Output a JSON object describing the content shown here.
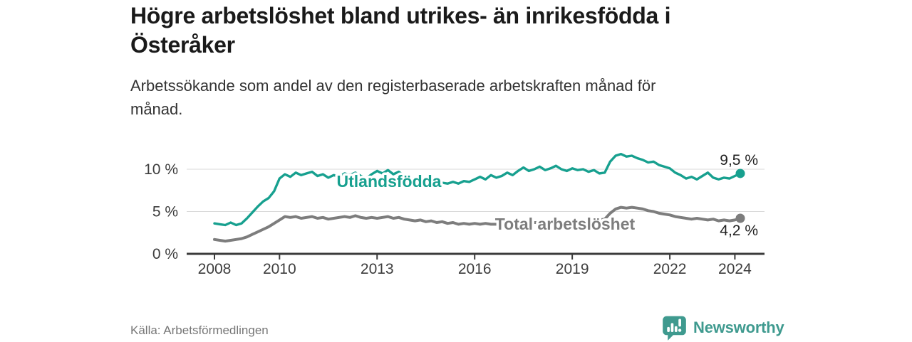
{
  "colors": {
    "accent_teal": "#17a08f",
    "series_gray": "#7d7d7d",
    "logo_teal": "#3f9a8f"
  },
  "header": {
    "title_lines": [
      "Högre arbetslöshet bland utrikes- än inrikesfödda i",
      "Österåker"
    ],
    "subtitle_lines": [
      "Arbetssökande som andel av den registerbaserade arbetskraften månad för",
      "månad."
    ]
  },
  "footer": {
    "source": "Källa: Arbetsförmedlingen",
    "brand": "Newsworthy"
  },
  "chart_data": {
    "type": "line",
    "title": "Högre arbetslöshet bland utrikes- än inrikesfödda i Österåker",
    "subtitle": "Arbetssökande som andel av den registerbaserade arbetskraften månad för månad.",
    "xlabel": "",
    "ylabel": "%",
    "x_start_year": 2008.0,
    "x_step_years": 0.1666667,
    "xlim": [
      2007.8,
      2024.9
    ],
    "ylim": [
      0,
      12.5
    ],
    "grid": "horizontal",
    "legend_position": "inline-labels",
    "x_ticks": [
      {
        "year": 2008,
        "label": "2008"
      },
      {
        "year": 2010,
        "label": "2010"
      },
      {
        "year": 2013,
        "label": "2013"
      },
      {
        "year": 2016,
        "label": "2016"
      },
      {
        "year": 2019,
        "label": "2019"
      },
      {
        "year": 2022,
        "label": "2022"
      },
      {
        "year": 2024,
        "label": "2024"
      }
    ],
    "y_ticks": [
      {
        "value": 0,
        "label": "0 %"
      },
      {
        "value": 5,
        "label": "5 %"
      },
      {
        "value": 10,
        "label": "10 %"
      }
    ],
    "series": [
      {
        "name": "Utlandsfödda",
        "color": "#17a08f",
        "end_value": 9.5,
        "end_label": "9,5 %",
        "values": [
          3.6,
          3.5,
          3.4,
          3.7,
          3.4,
          3.6,
          4.2,
          4.9,
          5.6,
          6.2,
          6.6,
          7.4,
          8.9,
          9.4,
          9.1,
          9.6,
          9.3,
          9.5,
          9.7,
          9.2,
          9.4,
          9.0,
          9.3,
          9.1,
          9.5,
          9.3,
          9.6,
          9.2,
          8.9,
          9.4,
          9.8,
          9.5,
          9.9,
          9.4,
          9.7,
          9.2,
          9.0,
          8.8,
          8.6,
          8.8,
          8.5,
          8.7,
          8.4,
          8.3,
          8.5,
          8.3,
          8.6,
          8.5,
          8.8,
          9.1,
          8.8,
          9.3,
          9.0,
          9.2,
          9.6,
          9.3,
          9.8,
          10.2,
          9.8,
          10.0,
          10.3,
          9.9,
          10.1,
          10.4,
          10.0,
          9.8,
          10.1,
          9.9,
          10.0,
          9.7,
          9.9,
          9.5,
          9.6,
          10.9,
          11.6,
          11.8,
          11.5,
          11.6,
          11.3,
          11.1,
          10.8,
          10.9,
          10.5,
          10.3,
          10.1,
          9.6,
          9.3,
          8.9,
          9.1,
          8.8,
          9.2,
          9.6,
          9.0,
          8.8,
          9.0,
          8.9,
          9.2,
          9.5
        ]
      },
      {
        "name": "Total arbetslöshet",
        "color": "#7d7d7d",
        "end_value": 4.2,
        "end_label": "4,2 %",
        "values": [
          1.7,
          1.6,
          1.5,
          1.6,
          1.7,
          1.8,
          2.0,
          2.3,
          2.6,
          2.9,
          3.2,
          3.6,
          4.0,
          4.4,
          4.3,
          4.4,
          4.2,
          4.3,
          4.4,
          4.2,
          4.3,
          4.1,
          4.2,
          4.3,
          4.4,
          4.3,
          4.5,
          4.3,
          4.2,
          4.3,
          4.2,
          4.3,
          4.4,
          4.2,
          4.3,
          4.1,
          4.0,
          3.9,
          4.0,
          3.8,
          3.9,
          3.7,
          3.8,
          3.6,
          3.7,
          3.5,
          3.6,
          3.5,
          3.6,
          3.5,
          3.6,
          3.5,
          3.5,
          3.6,
          3.6,
          3.5,
          3.6,
          3.7,
          3.6,
          3.7,
          3.7,
          3.6,
          3.7,
          3.8,
          3.7,
          3.8,
          3.9,
          3.8,
          3.9,
          4.0,
          3.9,
          4.0,
          4.1,
          4.8,
          5.3,
          5.5,
          5.4,
          5.5,
          5.4,
          5.3,
          5.1,
          5.0,
          4.8,
          4.7,
          4.6,
          4.4,
          4.3,
          4.2,
          4.1,
          4.2,
          4.1,
          4.0,
          4.1,
          3.9,
          4.0,
          3.9,
          4.0,
          4.2
        ]
      }
    ]
  }
}
